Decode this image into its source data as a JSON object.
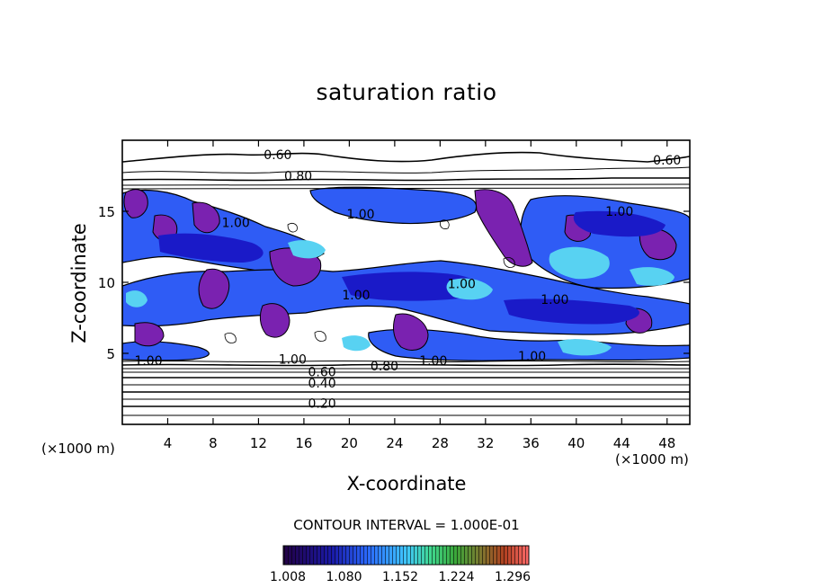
{
  "chart_data": {
    "type": "heatmap",
    "title": "saturation ratio",
    "xlabel": "X-coordinate",
    "ylabel": "Z-coordinate",
    "x_unit": "(×1000 m)",
    "xlim": [
      0,
      50
    ],
    "ylim": [
      0,
      20
    ],
    "x_ticks": [
      4,
      8,
      12,
      16,
      20,
      24,
      28,
      32,
      36,
      40,
      44,
      48
    ],
    "y_ticks": [
      5,
      10,
      15
    ],
    "contour_interval_text": "CONTOUR INTERVAL = 1.000E-01",
    "contour_labels": [
      {
        "text": "0.60",
        "x": 13.7,
        "z": 19.0
      },
      {
        "text": "0.60",
        "x": 48.0,
        "z": 18.6
      },
      {
        "text": "0.80",
        "x": 15.5,
        "z": 17.5
      },
      {
        "text": "1.00",
        "x": 21.0,
        "z": 14.8
      },
      {
        "text": "1.00",
        "x": 10.0,
        "z": 14.2
      },
      {
        "text": "1.00",
        "x": 43.8,
        "z": 15.0
      },
      {
        "text": "1.00",
        "x": 29.9,
        "z": 9.9
      },
      {
        "text": "1.00",
        "x": 20.6,
        "z": 9.1
      },
      {
        "text": "1.00",
        "x": 38.1,
        "z": 8.8
      },
      {
        "text": "1.00",
        "x": 2.3,
        "z": 4.5
      },
      {
        "text": "1.00",
        "x": 15.0,
        "z": 4.6
      },
      {
        "text": "1.00",
        "x": 27.4,
        "z": 4.5
      },
      {
        "text": "1.00",
        "x": 36.1,
        "z": 4.8
      },
      {
        "text": "0.80",
        "x": 23.1,
        "z": 4.1
      },
      {
        "text": "0.60",
        "x": 17.6,
        "z": 3.7
      },
      {
        "text": "0.40",
        "x": 17.6,
        "z": 2.9
      },
      {
        "text": "0.20",
        "x": 17.6,
        "z": 1.5
      }
    ],
    "colorbar": {
      "tick_labels": [
        "1.008",
        "1.080",
        "1.152",
        "1.224",
        "1.296"
      ],
      "colors": [
        "#220044",
        "#1a1aa8",
        "#2b6cff",
        "#3fc6ff",
        "#40d890",
        "#3aa83a",
        "#7a7a30",
        "#b04020",
        "#d8403a",
        "#ff6a6a"
      ]
    },
    "fill_colors": {
      "high_supersaturation": "#7a22b0",
      "low_supersaturation": "#1a1ac8",
      "mid": "#2f5cf5",
      "peak": "#58d2f2"
    }
  }
}
